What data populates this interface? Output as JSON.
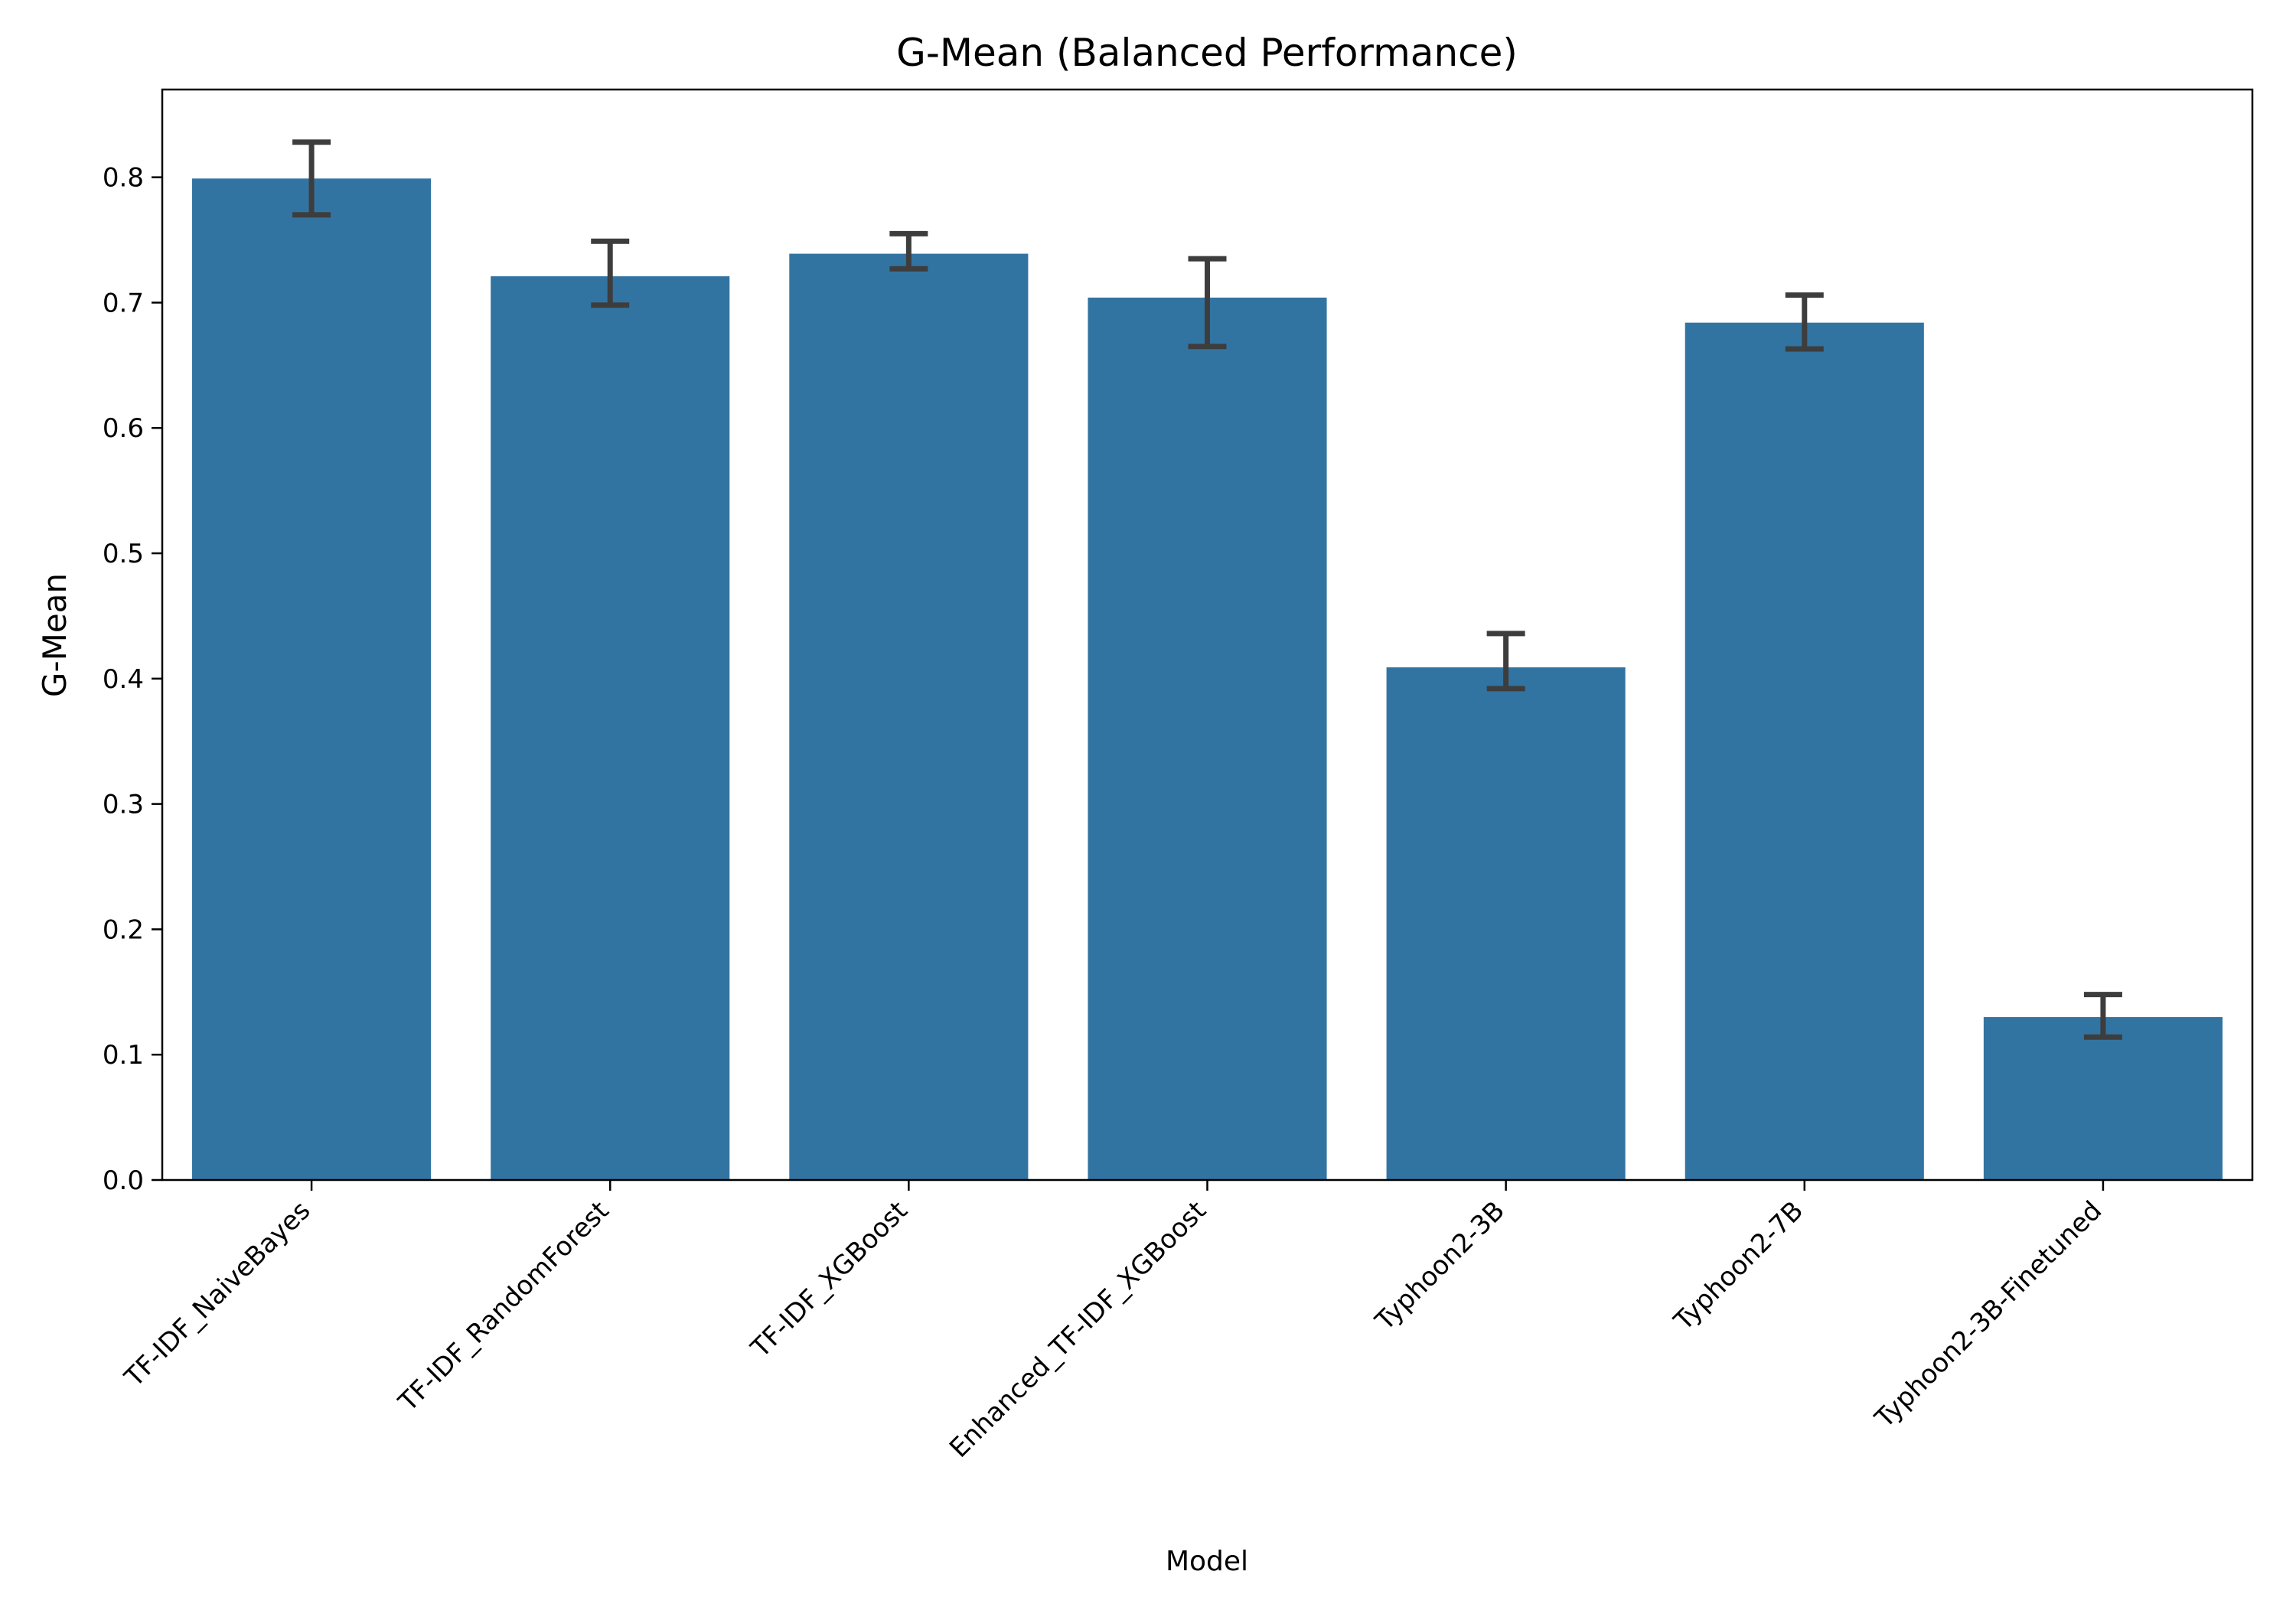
{
  "chart_data": {
    "type": "bar",
    "title": "G-Mean (Balanced Performance)",
    "xlabel": "Model",
    "ylabel": "G-Mean",
    "ylim": [
      0,
      0.87
    ],
    "yticks": [
      "0.0",
      "0.1",
      "0.2",
      "0.3",
      "0.4",
      "0.5",
      "0.6",
      "0.7",
      "0.8"
    ],
    "categories": [
      "TF-IDF_NaiveBayes",
      "TF-IDF_RandomForest",
      "TF-IDF_XGBoost",
      "Enhanced_TF-IDF_XGBoost",
      "Typhoon2-3B",
      "Typhoon2-7B",
      "Typhoon2-3B-Finetuned"
    ],
    "values": [
      0.799,
      0.721,
      0.739,
      0.704,
      0.409,
      0.684,
      0.13
    ],
    "error_low": [
      0.77,
      0.698,
      0.727,
      0.665,
      0.392,
      0.663,
      0.114
    ],
    "error_high": [
      0.828,
      0.749,
      0.755,
      0.735,
      0.436,
      0.706,
      0.148
    ],
    "grid": false,
    "bar_color": "#3274a1",
    "error_color": "#3d3d3d"
  }
}
